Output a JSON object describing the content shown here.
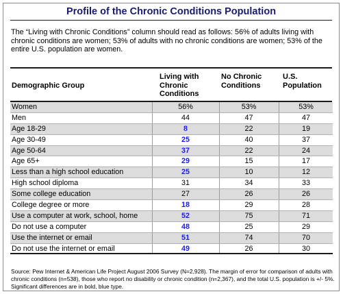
{
  "title": "Profile of the Chronic Conditions Population",
  "note": "The “Living with Chronic Conditions” column should read as follows: 56% of adults living with chronic conditions are women; 53% of adults with no chronic conditions are women; 53% of the entire U.S. population are women.",
  "columns": [
    "Demographic Group",
    "Living with Chronic Conditions",
    "No Chronic Conditions",
    "U.S. Population"
  ],
  "rows": [
    {
      "group": "Women",
      "living": "56%",
      "none": "53%",
      "us": "53%",
      "sig": false
    },
    {
      "group": "Men",
      "living": "44",
      "none": "47",
      "us": "47",
      "sig": false
    },
    {
      "group": "Age 18-29",
      "living": "8",
      "none": "22",
      "us": "19",
      "sig": true
    },
    {
      "group": "Age 30-49",
      "living": "25",
      "none": "40",
      "us": "37",
      "sig": true
    },
    {
      "group": "Age 50-64",
      "living": "37",
      "none": "22",
      "us": "24",
      "sig": true
    },
    {
      "group": "Age 65+",
      "living": "29",
      "none": "15",
      "us": "17",
      "sig": true
    },
    {
      "group": "Less than a high school education",
      "living": "25",
      "none": "10",
      "us": "12",
      "sig": true
    },
    {
      "group": "High school diploma",
      "living": "31",
      "none": "34",
      "us": "33",
      "sig": false
    },
    {
      "group": "Some college education",
      "living": "27",
      "none": "26",
      "us": "26",
      "sig": false
    },
    {
      "group": "College degree or more",
      "living": "18",
      "none": "29",
      "us": "28",
      "sig": true
    },
    {
      "group": "Use a computer at work, school, home",
      "living": "52",
      "none": "75",
      "us": "71",
      "sig": true
    },
    {
      "group": "Do not use a computer",
      "living": "48",
      "none": "25",
      "us": "29",
      "sig": true
    },
    {
      "group": "Use the internet or email",
      "living": "51",
      "none": "74",
      "us": "70",
      "sig": true
    },
    {
      "group": "Do not use the internet or email",
      "living": "49",
      "none": "26",
      "us": "30",
      "sig": true
    }
  ],
  "source": "Source: Pew Internet & American Life Project August 2006 Survey (N=2,928). The margin of error for comparison of adults with chronic conditions (n=538), those who report no disability or chronic condition (n=2,367), and the total U.S. population is +/- 5%. Significant differences are in bold, blue type.",
  "colors": {
    "title": "#1a1a6e",
    "significant": "#1a1aff",
    "shade": "#dcdcdc"
  }
}
